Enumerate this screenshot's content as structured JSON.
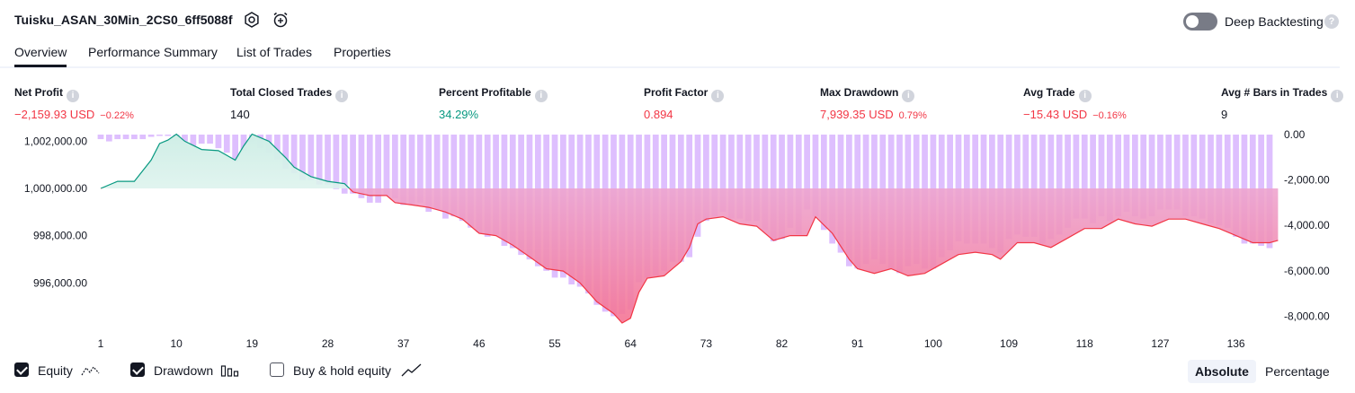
{
  "header": {
    "strategy_name": "Tuisku_ASAN_30Min_2CS0_6ff5088f",
    "settings_icon": "gear-icon",
    "alarm_icon": "alarm-plus-icon",
    "deep_backtesting_label": "Deep Backtesting",
    "deep_backtesting_enabled": false,
    "help_icon": "question-icon"
  },
  "tabs": [
    {
      "label": "Overview",
      "active": true
    },
    {
      "label": "Performance Summary",
      "active": false
    },
    {
      "label": "List of Trades",
      "active": false
    },
    {
      "label": "Properties",
      "active": false
    }
  ],
  "metrics": [
    {
      "label": "Net Profit",
      "value": "−2,159.93 USD",
      "pct": "−0.22%",
      "tone": "neg"
    },
    {
      "label": "Total Closed Trades",
      "value": "140",
      "pct": "",
      "tone": "neutral"
    },
    {
      "label": "Percent Profitable",
      "value": "34.29%",
      "pct": "",
      "tone": "pos"
    },
    {
      "label": "Profit Factor",
      "value": "0.894",
      "pct": "",
      "tone": "neg"
    },
    {
      "label": "Max Drawdown",
      "value": "7,939.35 USD",
      "pct": "0.79%",
      "tone": "neg"
    },
    {
      "label": "Avg Trade",
      "value": "−15.43 USD",
      "pct": "−0.16%",
      "tone": "neg"
    },
    {
      "label": "Avg # Bars in Trades",
      "value": "9",
      "pct": "",
      "tone": "neutral"
    }
  ],
  "chart_data": {
    "type": "area",
    "left_axis": {
      "ticks": [
        996000,
        998000,
        1000000,
        1002000
      ],
      "tick_labels": [
        "996,000.00",
        "998,000.00",
        "1,000,000.00",
        "1,002,000.00"
      ],
      "range": [
        994300,
        1002280
      ]
    },
    "right_axis": {
      "ticks": [
        0,
        -2000,
        -4000,
        -6000,
        -8000
      ],
      "tick_labels": [
        "0.00",
        "-2,000.00",
        "-4,000.00",
        "-6,000.00",
        "-8,000.00"
      ],
      "range": [
        -8300,
        0
      ]
    },
    "x_ticks": [
      1,
      10,
      19,
      28,
      37,
      46,
      55,
      64,
      73,
      82,
      91,
      100,
      109,
      118,
      127,
      136
    ],
    "equity_baseline": 1000000,
    "equity": [
      [
        1,
        1000000
      ],
      [
        3,
        1000300
      ],
      [
        5,
        1000300
      ],
      [
        7,
        1001200
      ],
      [
        8,
        1001900
      ],
      [
        9,
        1002050
      ],
      [
        10,
        1002300
      ],
      [
        11,
        1002000
      ],
      [
        13,
        1001650
      ],
      [
        15,
        1001600
      ],
      [
        17,
        1001200
      ],
      [
        18,
        1001800
      ],
      [
        19,
        1002300
      ],
      [
        21,
        1002000
      ],
      [
        23,
        1001300
      ],
      [
        24,
        1000900
      ],
      [
        26,
        1000500
      ],
      [
        28,
        1000300
      ],
      [
        30,
        1000200
      ],
      [
        31,
        999850
      ],
      [
        33,
        999700
      ],
      [
        35,
        999700
      ],
      [
        36,
        999400
      ],
      [
        38,
        999300
      ],
      [
        40,
        999200
      ],
      [
        42,
        999000
      ],
      [
        44,
        998700
      ],
      [
        46,
        998100
      ],
      [
        48,
        998000
      ],
      [
        50,
        997600
      ],
      [
        52,
        997100
      ],
      [
        54,
        996600
      ],
      [
        56,
        996500
      ],
      [
        58,
        996000
      ],
      [
        60,
        995200
      ],
      [
        62,
        994700
      ],
      [
        63,
        994300
      ],
      [
        64,
        994500
      ],
      [
        65,
        995600
      ],
      [
        66,
        996200
      ],
      [
        68,
        996300
      ],
      [
        70,
        996900
      ],
      [
        71,
        997500
      ],
      [
        72,
        998500
      ],
      [
        73,
        998700
      ],
      [
        75,
        998800
      ],
      [
        77,
        998500
      ],
      [
        79,
        998400
      ],
      [
        81,
        997800
      ],
      [
        83,
        998000
      ],
      [
        85,
        998000
      ],
      [
        86,
        998800
      ],
      [
        88,
        998100
      ],
      [
        90,
        997000
      ],
      [
        91,
        996600
      ],
      [
        93,
        996400
      ],
      [
        95,
        996600
      ],
      [
        97,
        996300
      ],
      [
        99,
        996400
      ],
      [
        101,
        996800
      ],
      [
        103,
        997200
      ],
      [
        105,
        997300
      ],
      [
        107,
        997200
      ],
      [
        108,
        997000
      ],
      [
        110,
        997700
      ],
      [
        112,
        997700
      ],
      [
        114,
        997500
      ],
      [
        116,
        997900
      ],
      [
        118,
        998300
      ],
      [
        120,
        998300
      ],
      [
        122,
        998700
      ],
      [
        124,
        998500
      ],
      [
        126,
        998400
      ],
      [
        128,
        998700
      ],
      [
        130,
        998700
      ],
      [
        132,
        998500
      ],
      [
        134,
        998300
      ],
      [
        136,
        998000
      ],
      [
        138,
        997700
      ],
      [
        140,
        997700
      ],
      [
        141,
        997800
      ]
    ],
    "drawdown": [
      [
        1,
        -200
      ],
      [
        2,
        -300
      ],
      [
        3,
        -200
      ],
      [
        4,
        -200
      ],
      [
        5,
        -200
      ],
      [
        6,
        -200
      ],
      [
        7,
        -100
      ],
      [
        8,
        0
      ],
      [
        9,
        0
      ],
      [
        10,
        0
      ],
      [
        11,
        -300
      ],
      [
        12,
        -500
      ],
      [
        13,
        -400
      ],
      [
        14,
        -400
      ],
      [
        15,
        -600
      ],
      [
        16,
        -800
      ],
      [
        17,
        -1200
      ],
      [
        18,
        -700
      ],
      [
        19,
        -300
      ],
      [
        20,
        -600
      ],
      [
        21,
        -800
      ],
      [
        22,
        -1100
      ],
      [
        23,
        -1500
      ],
      [
        24,
        -1700
      ],
      [
        25,
        -2000
      ],
      [
        26,
        -2000
      ],
      [
        27,
        -2200
      ],
      [
        28,
        -2200
      ],
      [
        29,
        -2400
      ],
      [
        30,
        -2600
      ],
      [
        31,
        -2600
      ],
      [
        32,
        -2800
      ],
      [
        33,
        -3000
      ],
      [
        34,
        -3000
      ],
      [
        35,
        -2700
      ],
      [
        36,
        -2800
      ],
      [
        37,
        -3100
      ],
      [
        38,
        -3100
      ],
      [
        39,
        -3000
      ],
      [
        40,
        -3400
      ],
      [
        41,
        -3300
      ],
      [
        42,
        -3700
      ],
      [
        43,
        -3600
      ],
      [
        44,
        -3800
      ],
      [
        45,
        -4100
      ],
      [
        46,
        -4300
      ],
      [
        47,
        -4500
      ],
      [
        48,
        -4400
      ],
      [
        49,
        -4900
      ],
      [
        50,
        -5000
      ],
      [
        51,
        -5300
      ],
      [
        52,
        -5500
      ],
      [
        53,
        -5800
      ],
      [
        54,
        -6000
      ],
      [
        55,
        -6300
      ],
      [
        56,
        -6300
      ],
      [
        57,
        -6600
      ],
      [
        58,
        -6700
      ],
      [
        59,
        -7000
      ],
      [
        60,
        -7500
      ],
      [
        61,
        -7800
      ],
      [
        62,
        -8000
      ],
      [
        63,
        -7900
      ],
      [
        64,
        -7700
      ],
      [
        65,
        -6500
      ],
      [
        66,
        -6300
      ],
      [
        67,
        -6200
      ],
      [
        68,
        -6000
      ],
      [
        69,
        -5600
      ],
      [
        70,
        -5600
      ],
      [
        71,
        -5400
      ],
      [
        72,
        -4500
      ],
      [
        73,
        -3800
      ],
      [
        74,
        -3600
      ],
      [
        75,
        -3400
      ],
      [
        76,
        -3700
      ],
      [
        77,
        -3700
      ],
      [
        78,
        -3800
      ],
      [
        79,
        -3800
      ],
      [
        80,
        -4200
      ],
      [
        81,
        -4700
      ],
      [
        82,
        -4600
      ],
      [
        83,
        -4100
      ],
      [
        84,
        -4400
      ],
      [
        85,
        -3300
      ],
      [
        86,
        -3600
      ],
      [
        87,
        -4200
      ],
      [
        88,
        -4800
      ],
      [
        89,
        -5200
      ],
      [
        90,
        -5800
      ],
      [
        91,
        -5900
      ],
      [
        92,
        -5700
      ],
      [
        93,
        -5500
      ],
      [
        94,
        -5700
      ],
      [
        95,
        -5900
      ],
      [
        96,
        -6100
      ],
      [
        97,
        -5800
      ],
      [
        98,
        -5700
      ],
      [
        99,
        -5900
      ],
      [
        100,
        -5900
      ],
      [
        101,
        -5400
      ],
      [
        102,
        -5100
      ],
      [
        103,
        -4700
      ],
      [
        104,
        -4800
      ],
      [
        105,
        -4800
      ],
      [
        106,
        -4800
      ],
      [
        107,
        -5000
      ],
      [
        108,
        -5200
      ],
      [
        109,
        -4600
      ],
      [
        110,
        -4400
      ],
      [
        111,
        -4500
      ],
      [
        112,
        -4500
      ],
      [
        113,
        -4800
      ],
      [
        114,
        -4600
      ],
      [
        115,
        -4400
      ],
      [
        116,
        -4100
      ],
      [
        117,
        -3700
      ],
      [
        118,
        -3700
      ],
      [
        119,
        -3900
      ],
      [
        120,
        -3600
      ],
      [
        121,
        -3800
      ],
      [
        122,
        -3600
      ],
      [
        123,
        -3400
      ],
      [
        124,
        -3600
      ],
      [
        125,
        -3700
      ],
      [
        126,
        -3600
      ],
      [
        127,
        -3300
      ],
      [
        128,
        -3300
      ],
      [
        129,
        -3300
      ],
      [
        130,
        -3600
      ],
      [
        131,
        -3600
      ],
      [
        132,
        -3700
      ],
      [
        133,
        -3900
      ],
      [
        134,
        -4000
      ],
      [
        135,
        -4100
      ],
      [
        136,
        -4500
      ],
      [
        137,
        -4800
      ],
      [
        138,
        -4800
      ],
      [
        139,
        -4900
      ],
      [
        140,
        -5000
      ]
    ],
    "colors": {
      "equity_line": "#089981",
      "equity_fill": "#cfeee6",
      "loss_line": "#f23645",
      "loss_fill_top": "#ebb9e8",
      "loss_fill_bottom": "#f47393",
      "drawdown_bar": "#d8b4fe",
      "tick_label": "#131722"
    }
  },
  "legend": [
    {
      "label": "Equity",
      "checked": true,
      "icon": "equity-line-icon"
    },
    {
      "label": "Drawdown",
      "checked": true,
      "icon": "drawdown-bars-icon"
    },
    {
      "label": "Buy & hold equity",
      "checked": false,
      "icon": "buy-hold-line-icon"
    }
  ],
  "modes": [
    {
      "label": "Absolute",
      "active": true
    },
    {
      "label": "Percentage",
      "active": false
    }
  ]
}
